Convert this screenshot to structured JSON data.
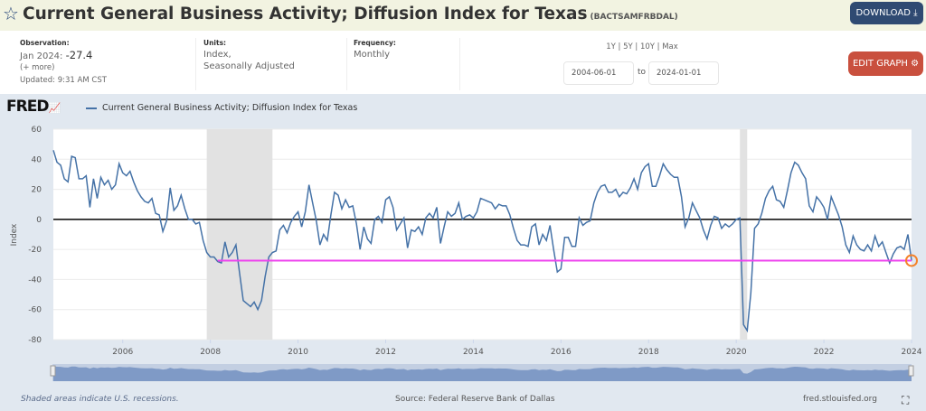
{
  "header": {
    "title": "Current General Business Activity; Diffusion Index for Texas",
    "series_id": "(BACTSAMFRBDAL)",
    "download_label": "DOWNLOAD",
    "star_icon": "star-icon",
    "download_icon": "download-icon"
  },
  "info": {
    "observation_label": "Observation:",
    "observation_date": "Jan 2024:",
    "observation_value": "-27.4",
    "more": "(+ more)",
    "updated": "Updated: 9:31 AM CST",
    "units_label": "Units:",
    "units_line1": "Index,",
    "units_line2": "Seasonally Adjusted",
    "frequency_label": "Frequency:",
    "frequency": "Monthly"
  },
  "range": {
    "presets": "1Y | 5Y | 10Y | Max",
    "start": "2004-06-01",
    "to": "to",
    "end": "2024-01-01"
  },
  "edit_graph_label": "EDIT GRAPH",
  "gear_icon": "gear-icon",
  "logo": "FRED",
  "footer": {
    "recession_note": "Shaded areas indicate U.S. recessions.",
    "source": "Source: Federal Reserve Bank of Dallas",
    "site": "fred.stlouisfed.org",
    "fullscreen_icon": "fullscreen-icon"
  },
  "chart_data": {
    "type": "line",
    "title": "",
    "ylabel": "Index",
    "xlabel": "",
    "ylim": [
      -80,
      60
    ],
    "xlim": [
      "2004-06",
      "2024-01"
    ],
    "yticks": [
      "60",
      "40",
      "20",
      "0",
      "-20",
      "-40",
      "-60",
      "-80"
    ],
    "xticks": [
      "2006",
      "2008",
      "2010",
      "2012",
      "2014",
      "2016",
      "2018",
      "2020",
      "2022",
      "2024"
    ],
    "grid": true,
    "legend": "top-left",
    "colors": {
      "series": "#4572a7",
      "zero_line": "#000000",
      "reference_line": "#ee44ee",
      "marker": "#f4822a",
      "recession": "#e2e2e2"
    },
    "recessions": [
      [
        "2007-12",
        "2009-06"
      ],
      [
        "2020-02",
        "2020-04"
      ]
    ],
    "reference_line": {
      "value": -27.4,
      "from": "2008-03"
    },
    "series": [
      {
        "name": "Current General Business Activity; Diffusion Index for Texas",
        "start": "2004-06",
        "frequency": "monthly",
        "values": [
          46,
          38,
          36,
          27,
          25,
          42,
          41,
          27,
          27,
          29,
          8,
          27,
          14,
          28,
          23,
          26,
          20,
          23,
          37,
          31,
          29,
          32,
          25,
          19,
          15,
          12,
          11,
          14,
          4,
          3,
          -8,
          -1,
          21,
          6,
          9,
          16,
          7,
          0,
          0,
          -3,
          -2,
          -14,
          -22,
          -25,
          -25,
          -28,
          -29,
          -15,
          -25,
          -22,
          -17,
          -36,
          -54,
          -56,
          -58,
          -55,
          -60,
          -54,
          -38,
          -25,
          -22,
          -21,
          -7,
          -4,
          -9,
          -2,
          2,
          5,
          -5,
          5,
          23,
          11,
          -1,
          -17,
          -10,
          -14,
          3,
          18,
          16,
          7,
          13,
          8,
          9,
          -3,
          -20,
          -5,
          -13,
          -16,
          0,
          2,
          -2,
          13,
          15,
          8,
          -7,
          -3,
          1,
          -19,
          -7,
          -8,
          -5,
          -10,
          1,
          4,
          1,
          8,
          -16,
          -5,
          5,
          2,
          4,
          11,
          0,
          2,
          3,
          1,
          5,
          14,
          13,
          12,
          11,
          7,
          10,
          9,
          9,
          3,
          -6,
          -14,
          -17,
          -17,
          -18,
          -5,
          -3,
          -17,
          -10,
          -14,
          -4,
          -20,
          -35,
          -33,
          -12,
          -12,
          -18,
          -18,
          1,
          -4,
          -2,
          -1,
          11,
          18,
          22,
          23,
          18,
          18,
          20,
          15,
          18,
          17,
          21,
          27,
          20,
          31,
          35,
          37,
          22,
          22,
          29,
          37,
          33,
          30,
          28,
          28,
          15,
          -5,
          1,
          11,
          6,
          1,
          -7,
          -13,
          -4,
          2,
          1,
          -6,
          -3,
          -5,
          -3,
          0,
          1,
          -70,
          -74,
          -49,
          -6,
          -3,
          4,
          14,
          19,
          22,
          13,
          12,
          8,
          19,
          31,
          38,
          36,
          31,
          27,
          9,
          5,
          15,
          12,
          8,
          0,
          15,
          9,
          3,
          -5,
          -17,
          -22,
          -11,
          -17,
          -20,
          -21,
          -17,
          -21,
          -11,
          -18,
          -15,
          -22,
          -29,
          -23,
          -19,
          -18,
          -20,
          -10,
          -27.4
        ]
      }
    ]
  }
}
